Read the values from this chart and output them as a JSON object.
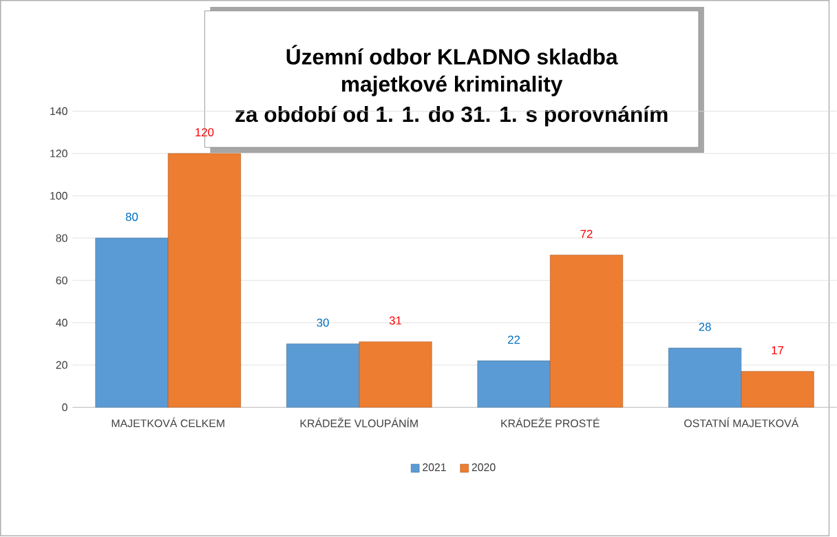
{
  "chart_data": {
    "type": "bar",
    "title": "Územní odbor KLADNO skladba majetkové kriminality",
    "subtitle": "za období od 1. 1. do 31. 1. s porovnáním",
    "categories": [
      "MAJETKOVÁ CELKEM",
      "KRÁDEŽE VLOUPÁNÍM",
      "KRÁDEŽE PROSTÉ",
      "OSTATNÍ MAJETKOVÁ"
    ],
    "series": [
      {
        "name": "2021",
        "color": "#5b9bd5",
        "values": [
          80,
          30,
          22,
          28
        ]
      },
      {
        "name": "2020",
        "color": "#ed7d31",
        "values": [
          120,
          31,
          72,
          17
        ]
      }
    ],
    "ylim": [
      0,
      140
    ],
    "yticks": [
      0,
      20,
      40,
      60,
      80,
      100,
      120,
      140
    ],
    "grid": "y",
    "legend": "bottom",
    "data_labels": true
  }
}
